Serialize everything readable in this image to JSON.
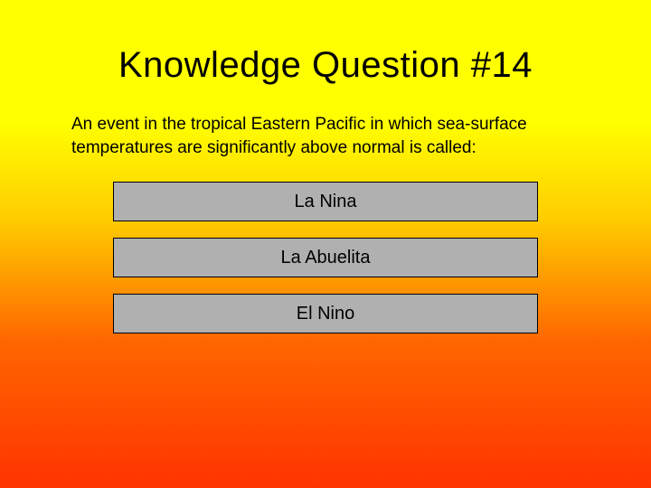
{
  "slide": {
    "title": "Knowledge Question #14",
    "question": "An event in the tropical Eastern Pacific in which sea-surface temperatures are significantly above normal is called:",
    "answers": [
      "La Nina",
      "La Abuelita",
      "El Nino"
    ],
    "styling": {
      "type": "infographic",
      "background_gradient": {
        "direction": "vertical",
        "stops": [
          "#ffff00",
          "#ffff00",
          "#ffcc00",
          "#ff6600",
          "#ff3300"
        ]
      },
      "title_fontsize": 40,
      "title_color": "#000000",
      "question_fontsize": 19,
      "question_color": "#000000",
      "button_background": "#b0b0b0",
      "button_border_color": "#000000",
      "button_fontsize": 20,
      "button_height": 44,
      "button_width_pct": 100,
      "font_family": "Trebuchet MS"
    }
  }
}
